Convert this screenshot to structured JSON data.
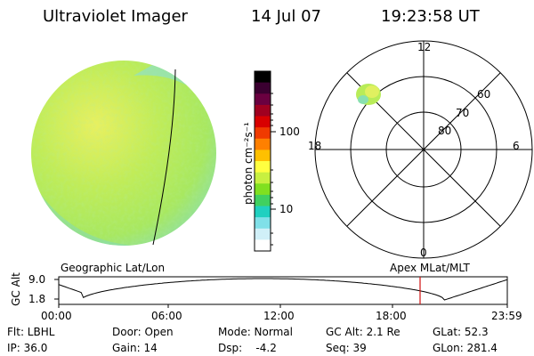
{
  "header": {
    "title": "Ultraviolet Imager",
    "date": "14 Jul 07",
    "time": "19:23:58 UT"
  },
  "colorbar": {
    "label": "photon cm⁻²s⁻¹",
    "ticks": [
      "100",
      "10"
    ],
    "colors": [
      "#000000",
      "#3a0030",
      "#6a0040",
      "#a00020",
      "#d80000",
      "#f03a00",
      "#ff8000",
      "#ffc000",
      "#ffff40",
      "#c8f040",
      "#80e020",
      "#40d060",
      "#20d0c0",
      "#80e0e8",
      "#d0f0f8",
      "#ffffff"
    ]
  },
  "polar_plot": {
    "ring_labels": [
      "80",
      "70",
      "60"
    ],
    "clock_labels": {
      "top": "12",
      "bottom": "0",
      "left": "18",
      "right": "6"
    }
  },
  "footer_labels": {
    "left": "Geographic Lat/Lon",
    "right": "Apex MLat/MLT"
  },
  "chart_data": {
    "type": "line",
    "ylabel": "GC Alt",
    "y_ticks": [
      "9.0",
      "1.8"
    ],
    "x_ticks": [
      "00:00",
      "06:00",
      "12:00",
      "18:00",
      "23:59"
    ],
    "current_time_marker": "19:23:58"
  },
  "status": {
    "flt": "Flt: LBHL",
    "ip": "IP: 36.0",
    "door": "Door: Open",
    "gain": "Gain: 14",
    "mode": "Mode: Normal",
    "dsp": "Dsp:    -4.2",
    "gcalt": "GC Alt: 2.1 Re",
    "seq": "Seq: 39",
    "glat": "GLat: 52.3",
    "glon": "GLon: 281.4"
  },
  "colors": {
    "disk_base": "#b8ec58",
    "disk_hot": "#f0f060",
    "disk_cool": "#88e0b0",
    "marker": "#d01010"
  }
}
